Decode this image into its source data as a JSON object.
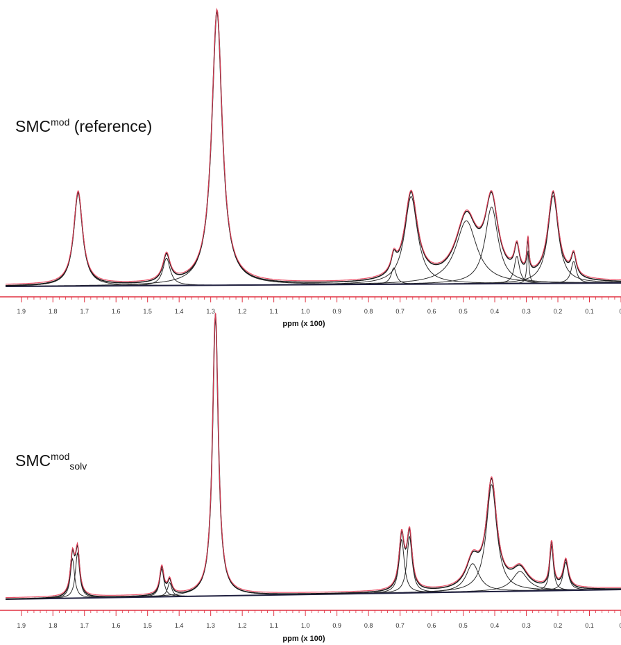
{
  "chart_data": [
    {
      "type": "line",
      "panel": "top",
      "label": {
        "main": "SMC",
        "sup": "mod",
        "sub": "",
        "tail": " (reference)"
      },
      "xlabel": "ppm (x 100)",
      "xlim": [
        1.95,
        0.0
      ],
      "x_reversed": true,
      "xticks": [
        "1.9",
        "1.8",
        "1.7",
        "1.6",
        "1.5",
        "1.4",
        "1.3",
        "1.2",
        "1.1",
        "1.0",
        "0.9",
        "0.8",
        "0.7",
        "0.6",
        "0.5",
        "0.4",
        "0.3",
        "0.2",
        "0.1",
        "0"
      ],
      "ylim": [
        0,
        1.0
      ],
      "series": [
        {
          "role": "measured",
          "color": "#e8405a",
          "peaks": [
            {
              "ppm": 1.72,
              "height": 0.34,
              "width": 0.017
            },
            {
              "ppm": 1.44,
              "height": 0.1,
              "width": 0.014
            },
            {
              "ppm": 1.28,
              "height": 1.0,
              "width": 0.02
            },
            {
              "ppm": 0.72,
              "height": 0.06,
              "width": 0.01
            },
            {
              "ppm": 0.665,
              "height": 0.32,
              "width": 0.025
            },
            {
              "ppm": 0.49,
              "height": 0.23,
              "width": 0.04
            },
            {
              "ppm": 0.41,
              "height": 0.28,
              "width": 0.025
            },
            {
              "ppm": 0.33,
              "height": 0.1,
              "width": 0.01
            },
            {
              "ppm": 0.295,
              "height": 0.12,
              "width": 0.004
            },
            {
              "ppm": 0.215,
              "height": 0.32,
              "width": 0.02
            },
            {
              "ppm": 0.15,
              "height": 0.08,
              "width": 0.01
            }
          ]
        }
      ],
      "components": [
        {
          "ppm": 1.72,
          "height": 0.34,
          "width": 0.017
        },
        {
          "ppm": 1.44,
          "height": 0.1,
          "width": 0.014
        },
        {
          "ppm": 1.28,
          "height": 1.0,
          "width": 0.02
        },
        {
          "ppm": 0.72,
          "height": 0.06,
          "width": 0.01
        },
        {
          "ppm": 0.665,
          "height": 0.32,
          "width": 0.025
        },
        {
          "ppm": 0.49,
          "height": 0.23,
          "width": 0.04
        },
        {
          "ppm": 0.41,
          "height": 0.28,
          "width": 0.025
        },
        {
          "ppm": 0.33,
          "height": 0.1,
          "width": 0.01
        },
        {
          "ppm": 0.295,
          "height": 0.12,
          "width": 0.004
        },
        {
          "ppm": 0.215,
          "height": 0.32,
          "width": 0.02
        },
        {
          "ppm": 0.15,
          "height": 0.08,
          "width": 0.01
        }
      ],
      "component_color": "#2a2a2a",
      "axis_color": "#e03040"
    },
    {
      "type": "line",
      "panel": "bottom",
      "label": {
        "main": "SMC",
        "sup": "mod",
        "sub": "solv",
        "tail": ""
      },
      "xlabel": "ppm (x 100)",
      "xlim": [
        1.95,
        0.0
      ],
      "x_reversed": true,
      "xticks": [
        "1.9",
        "1.8",
        "1.7",
        "1.6",
        "1.5",
        "1.4",
        "1.3",
        "1.2",
        "1.1",
        "1.0",
        "0.9",
        "0.8",
        "0.7",
        "0.6",
        "0.5",
        "0.4",
        "0.3",
        "0.2",
        "0.1",
        "0"
      ],
      "ylim": [
        0,
        1.0
      ],
      "series": [
        {
          "role": "measured",
          "color": "#e8405a",
          "peaks": [
            {
              "ppm": 1.738,
              "height": 0.14,
              "width": 0.008
            },
            {
              "ppm": 1.722,
              "height": 0.16,
              "width": 0.008
            },
            {
              "ppm": 1.455,
              "height": 0.1,
              "width": 0.008
            },
            {
              "ppm": 1.43,
              "height": 0.05,
              "width": 0.008
            },
            {
              "ppm": 1.285,
              "height": 1.0,
              "width": 0.011
            },
            {
              "ppm": 0.695,
              "height": 0.19,
              "width": 0.01
            },
            {
              "ppm": 0.67,
              "height": 0.2,
              "width": 0.01
            },
            {
              "ppm": 0.47,
              "height": 0.1,
              "width": 0.025
            },
            {
              "ppm": 0.41,
              "height": 0.38,
              "width": 0.02
            },
            {
              "ppm": 0.32,
              "height": 0.07,
              "width": 0.03
            },
            {
              "ppm": 0.22,
              "height": 0.16,
              "width": 0.007
            },
            {
              "ppm": 0.175,
              "height": 0.1,
              "width": 0.01
            }
          ]
        }
      ],
      "components": [
        {
          "ppm": 1.738,
          "height": 0.14,
          "width": 0.008
        },
        {
          "ppm": 1.722,
          "height": 0.16,
          "width": 0.008
        },
        {
          "ppm": 1.455,
          "height": 0.1,
          "width": 0.008
        },
        {
          "ppm": 1.43,
          "height": 0.05,
          "width": 0.008
        },
        {
          "ppm": 1.285,
          "height": 1.0,
          "width": 0.011
        },
        {
          "ppm": 0.695,
          "height": 0.19,
          "width": 0.01
        },
        {
          "ppm": 0.67,
          "height": 0.2,
          "width": 0.01
        },
        {
          "ppm": 0.47,
          "height": 0.1,
          "width": 0.025
        },
        {
          "ppm": 0.41,
          "height": 0.38,
          "width": 0.02
        },
        {
          "ppm": 0.32,
          "height": 0.07,
          "width": 0.03
        },
        {
          "ppm": 0.22,
          "height": 0.16,
          "width": 0.007
        },
        {
          "ppm": 0.175,
          "height": 0.1,
          "width": 0.01
        }
      ],
      "component_color": "#2a2a2a",
      "axis_color": "#e03040"
    }
  ]
}
